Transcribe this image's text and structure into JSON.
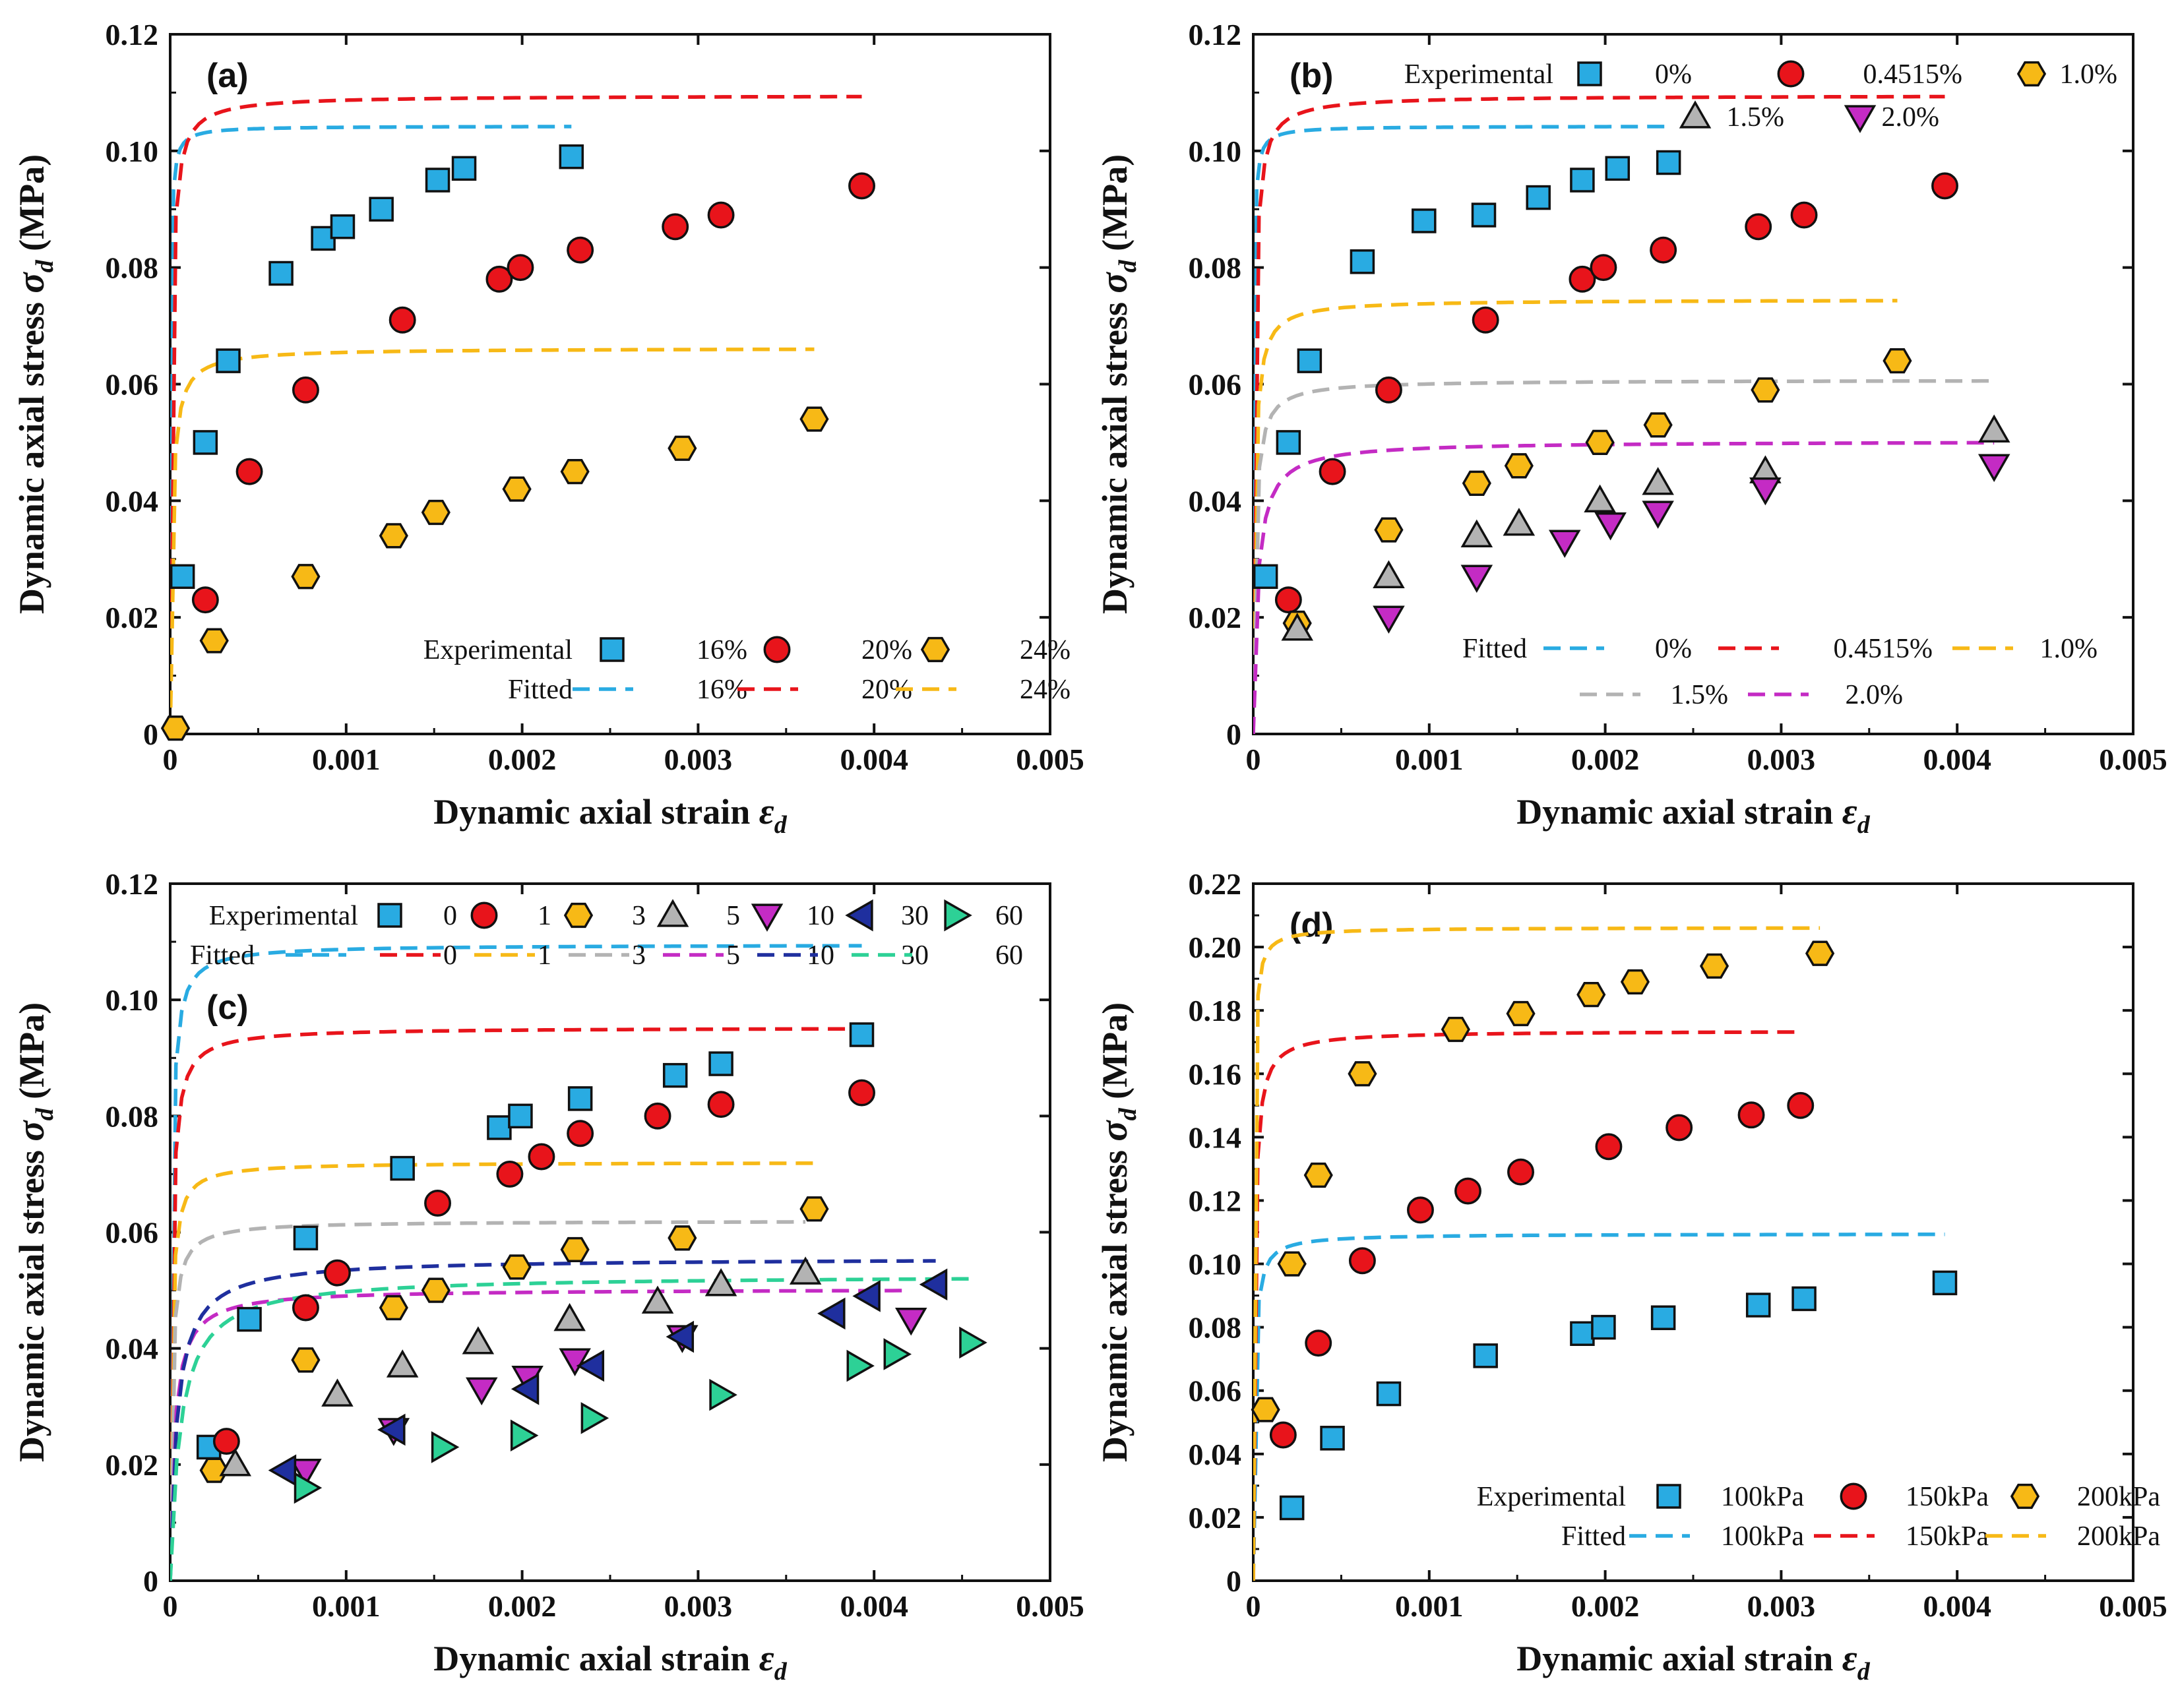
{
  "figure": {
    "xlabel_prefix": "Dynamic axial strain ",
    "xlabel_symbol": "ε",
    "xlabel_sub": "d",
    "ylabel_prefix": "Dynamic axial stress ",
    "ylabel_symbol": "σ",
    "ylabel_sub": "d",
    "ylabel_suffix": " (MPa)"
  },
  "colors": {
    "blue": "#29ABE2",
    "red": "#E8141B",
    "yellow": "#F7B916",
    "gray": "#B3B3B3",
    "magenta": "#C42BC4",
    "navy": "#1F2F9E",
    "teal": "#2DD196"
  },
  "legend_labels": {
    "experimental": "Experimental",
    "fitted": "Fitted"
  },
  "chart_data": [
    {
      "id": "a",
      "label": "(a)",
      "type": "scatter",
      "xlim": [
        0,
        0.005
      ],
      "ylim": [
        0,
        0.12
      ],
      "xticks": [
        "0",
        "0.001",
        "0.002",
        "0.003",
        "0.004",
        "0.005"
      ],
      "yticks": [
        "0",
        "0.02",
        "0.04",
        "0.06",
        "0.08",
        "0.10",
        "0.12"
      ],
      "legend": {
        "placement": "bottom-right",
        "exp_title": "Experimental",
        "fit_title": "Fitted",
        "exp_names": [
          "16%",
          "20%",
          "24%"
        ],
        "fit_names": [
          "16%",
          "20%",
          "24%"
        ]
      },
      "series": [
        {
          "name": "16%",
          "color": "blue",
          "marker": "square",
          "x": [
            7e-05,
            0.0002,
            0.00033,
            0.00063,
            0.00087,
            0.00098,
            0.0012,
            0.00152,
            0.00167,
            0.00228
          ],
          "y": [
            0.027,
            0.05,
            0.064,
            0.079,
            0.085,
            0.087,
            0.09,
            0.095,
            0.097,
            0.099
          ],
          "fit": {
            "a": 2.13e-05,
            "b": 9.59
          }
        },
        {
          "name": "20%",
          "color": "red",
          "marker": "circle",
          "x": [
            0.0002,
            0.00045,
            0.00077,
            0.00132,
            0.00187,
            0.00199,
            0.00233,
            0.00287,
            0.00313,
            0.00393
          ],
          "y": [
            0.023,
            0.045,
            0.059,
            0.071,
            0.078,
            0.08,
            0.083,
            0.087,
            0.089,
            0.094
          ],
          "fit": {
            "a": 7e-05,
            "b": 9.13
          }
        },
        {
          "name": "24%",
          "color": "yellow",
          "marker": "hexagon",
          "x": [
            3e-05,
            0.00025,
            0.00077,
            0.00127,
            0.00151,
            0.00197,
            0.0023,
            0.00291,
            0.00366
          ],
          "y": [
            0.001,
            0.016,
            0.027,
            0.034,
            0.038,
            0.042,
            0.045,
            0.049,
            0.054
          ],
          "fit": {
            "a": 0.0001695,
            "b": 15.11
          }
        }
      ]
    },
    {
      "id": "b",
      "label": "(b)",
      "type": "scatter",
      "xlim": [
        0,
        0.005
      ],
      "ylim": [
        0,
        0.12
      ],
      "xticks": [
        "0",
        "0.001",
        "0.002",
        "0.003",
        "0.004",
        "0.005"
      ],
      "yticks": [
        "0",
        "0.02",
        "0.04",
        "0.06",
        "0.08",
        "0.10",
        "0.12"
      ],
      "legend": {
        "placement": "split-top-bottom",
        "exp_title": "Experimental",
        "fit_title": "Fitted",
        "exp_names": [
          "0%",
          "0.4515%",
          "1.0%",
          "1.5%",
          "2.0%"
        ],
        "fit_names": [
          "0%",
          "0.4515%",
          "1.0%",
          "1.5%",
          "2.0%"
        ]
      },
      "series": [
        {
          "name": "0%",
          "color": "blue",
          "marker": "square",
          "x": [
            7e-05,
            0.0002,
            0.00032,
            0.00062,
            0.00097,
            0.00131,
            0.00162,
            0.00187,
            0.00207,
            0.00236
          ],
          "y": [
            0.027,
            0.05,
            0.064,
            0.081,
            0.088,
            0.089,
            0.092,
            0.095,
            0.097,
            0.098
          ],
          "fit": {
            "a": 2.13e-05,
            "b": 9.59
          }
        },
        {
          "name": "0.4515%",
          "color": "red",
          "marker": "circle",
          "x": [
            0.0002,
            0.00045,
            0.00077,
            0.00132,
            0.00187,
            0.00199,
            0.00233,
            0.00287,
            0.00313,
            0.00393
          ],
          "y": [
            0.023,
            0.045,
            0.059,
            0.071,
            0.078,
            0.08,
            0.083,
            0.087,
            0.089,
            0.094
          ],
          "fit": {
            "a": 7e-05,
            "b": 9.13
          }
        },
        {
          "name": "1.0%",
          "color": "yellow",
          "marker": "hexagon",
          "x": [
            0.00025,
            0.00077,
            0.00127,
            0.00151,
            0.00197,
            0.0023,
            0.00291,
            0.00366
          ],
          "y": [
            0.019,
            0.035,
            0.043,
            0.046,
            0.05,
            0.053,
            0.059,
            0.064
          ],
          "fit": {
            "a": 0.0001308,
            "b": 13.42
          }
        },
        {
          "name": "1.5%",
          "color": "gray",
          "marker": "triangle-up",
          "x": [
            0.00025,
            0.00077,
            0.00127,
            0.00151,
            0.00197,
            0.0023,
            0.00291,
            0.00421
          ],
          "y": [
            0.018,
            0.027,
            0.034,
            0.036,
            0.04,
            0.043,
            0.045,
            0.052
          ],
          "fit": {
            "a": 0.0001887,
            "b": 16.47
          }
        },
        {
          "name": "2.0%",
          "color": "magenta",
          "marker": "triangle-down",
          "x": [
            0.00077,
            0.00127,
            0.00177,
            0.00203,
            0.0023,
            0.00291,
            0.00421
          ],
          "y": [
            0.02,
            0.027,
            0.033,
            0.036,
            0.038,
            0.042,
            0.046
          ],
          "fit": {
            "a": 0.0005,
            "b": 19.9
          }
        }
      ]
    },
    {
      "id": "c",
      "label": "(c)",
      "type": "scatter",
      "xlim": [
        0,
        0.005
      ],
      "ylim": [
        0,
        0.12
      ],
      "xticks": [
        "0",
        "0.001",
        "0.002",
        "0.003",
        "0.004",
        "0.005"
      ],
      "yticks": [
        "0",
        "0.02",
        "0.04",
        "0.06",
        "0.08",
        "0.10",
        "0.12"
      ],
      "legend": {
        "placement": "top",
        "exp_title": "Experimental",
        "fit_title": "Fitted",
        "exp_names": [
          "0",
          "1",
          "3",
          "5",
          "10",
          "30",
          "60"
        ],
        "fit_names": [
          "0",
          "1",
          "3",
          "5",
          "10",
          "30",
          "60"
        ]
      },
      "series": [
        {
          "name": "0",
          "color": "blue",
          "marker": "square",
          "x": [
            0.00022,
            0.00045,
            0.00077,
            0.00132,
            0.00187,
            0.00199,
            0.00233,
            0.00287,
            0.00313,
            0.00393
          ],
          "y": [
            0.023,
            0.045,
            0.059,
            0.071,
            0.078,
            0.08,
            0.083,
            0.087,
            0.089,
            0.094
          ],
          "fit": {
            "a": 7e-05,
            "b": 9.13
          }
        },
        {
          "name": "1",
          "color": "red",
          "marker": "circle",
          "x": [
            0.00032,
            0.00077,
            0.00095,
            0.00152,
            0.00193,
            0.00211,
            0.00233,
            0.00277,
            0.00313,
            0.00393
          ],
          "y": [
            0.024,
            0.047,
            0.053,
            0.065,
            0.07,
            0.073,
            0.077,
            0.08,
            0.082,
            0.084
          ],
          "fit": {
            "a": 0.0001,
            "b": 10.5
          }
        },
        {
          "name": "3",
          "color": "yellow",
          "marker": "hexagon",
          "x": [
            0.00025,
            0.00077,
            0.00127,
            0.00151,
            0.00197,
            0.0023,
            0.00291,
            0.00366
          ],
          "y": [
            0.019,
            0.038,
            0.047,
            0.05,
            0.054,
            0.057,
            0.059,
            0.064
          ],
          "fit": {
            "a": 0.000121,
            "b": 13.88
          }
        },
        {
          "name": "5",
          "color": "gray",
          "marker": "triangle-up",
          "x": [
            0.00037,
            0.00095,
            0.00132,
            0.00175,
            0.00227,
            0.00277,
            0.00313,
            0.00361
          ],
          "y": [
            0.02,
            0.032,
            0.037,
            0.041,
            0.045,
            0.048,
            0.051,
            0.053
          ],
          "fit": {
            "a": 0.000178,
            "b": 16.14
          }
        },
        {
          "name": "10",
          "color": "magenta",
          "marker": "triangle-down",
          "x": [
            0.00077,
            0.00127,
            0.00177,
            0.00203,
            0.0023,
            0.00291,
            0.00421
          ],
          "y": [
            0.019,
            0.026,
            0.033,
            0.035,
            0.038,
            0.042,
            0.045
          ],
          "fit": {
            "a": 0.0005,
            "b": 19.9
          }
        },
        {
          "name": "30",
          "color": "navy",
          "marker": "triangle-left",
          "x": [
            0.00065,
            0.00127,
            0.00203,
            0.0024,
            0.00291,
            0.00377,
            0.00397,
            0.00435
          ],
          "y": [
            0.019,
            0.026,
            0.033,
            0.037,
            0.042,
            0.046,
            0.049,
            0.051
          ],
          "fit": {
            "a": 0.0007,
            "b": 18.0
          }
        },
        {
          "name": "60",
          "color": "teal",
          "marker": "triangle-right",
          "x": [
            0.00077,
            0.00155,
            0.002,
            0.0024,
            0.00313,
            0.00391,
            0.00412,
            0.00455
          ],
          "y": [
            0.016,
            0.023,
            0.025,
            0.028,
            0.032,
            0.037,
            0.039,
            0.041
          ],
          "fit": {
            "a": 0.0011,
            "b": 19.0
          }
        }
      ]
    },
    {
      "id": "d",
      "label": "(d)",
      "type": "scatter",
      "xlim": [
        0,
        0.005
      ],
      "ylim": [
        0,
        0.22
      ],
      "xticks": [
        "0",
        "0.001",
        "0.002",
        "0.003",
        "0.004",
        "0.005"
      ],
      "yticks": [
        "0",
        "0.02",
        "0.04",
        "0.06",
        "0.08",
        "0.10",
        "0.12",
        "0.14",
        "0.16",
        "0.18",
        "0.20",
        "0.22"
      ],
      "legend": {
        "placement": "bottom-right",
        "exp_title": "Experimental",
        "fit_title": "Fitted",
        "exp_names": [
          "100kPa",
          "150kPa",
          "200kPa"
        ],
        "fit_names": [
          "100kPa",
          "150kPa",
          "200kPa"
        ]
      },
      "series": [
        {
          "name": "100kPa",
          "color": "blue",
          "marker": "square",
          "x": [
            0.00022,
            0.00045,
            0.00077,
            0.00132,
            0.00187,
            0.00199,
            0.00233,
            0.00287,
            0.00313,
            0.00393
          ],
          "y": [
            0.023,
            0.045,
            0.059,
            0.071,
            0.078,
            0.08,
            0.083,
            0.087,
            0.089,
            0.094
          ],
          "fit": {
            "a": 7e-05,
            "b": 9.13
          }
        },
        {
          "name": "150kPa",
          "color": "red",
          "marker": "circle",
          "x": [
            0.00017,
            0.00037,
            0.00062,
            0.00095,
            0.00122,
            0.00152,
            0.00202,
            0.00242,
            0.00283,
            0.00311
          ],
          "y": [
            0.046,
            0.075,
            0.101,
            0.117,
            0.123,
            0.129,
            0.137,
            0.143,
            0.147,
            0.15
          ],
          "fit": {
            "a": 4.47e-05,
            "b": 5.76
          }
        },
        {
          "name": "200kPa",
          "color": "yellow",
          "marker": "hexagon",
          "x": [
            7e-05,
            0.00022,
            0.00037,
            0.00062,
            0.00115,
            0.00152,
            0.00192,
            0.00217,
            0.00262,
            0.00322
          ],
          "y": [
            0.054,
            0.1,
            0.128,
            0.16,
            0.174,
            0.179,
            0.185,
            0.189,
            0.194,
            0.198
          ],
          "fit": {
            "a": 1.51e-05,
            "b": 4.85
          }
        }
      ]
    }
  ]
}
